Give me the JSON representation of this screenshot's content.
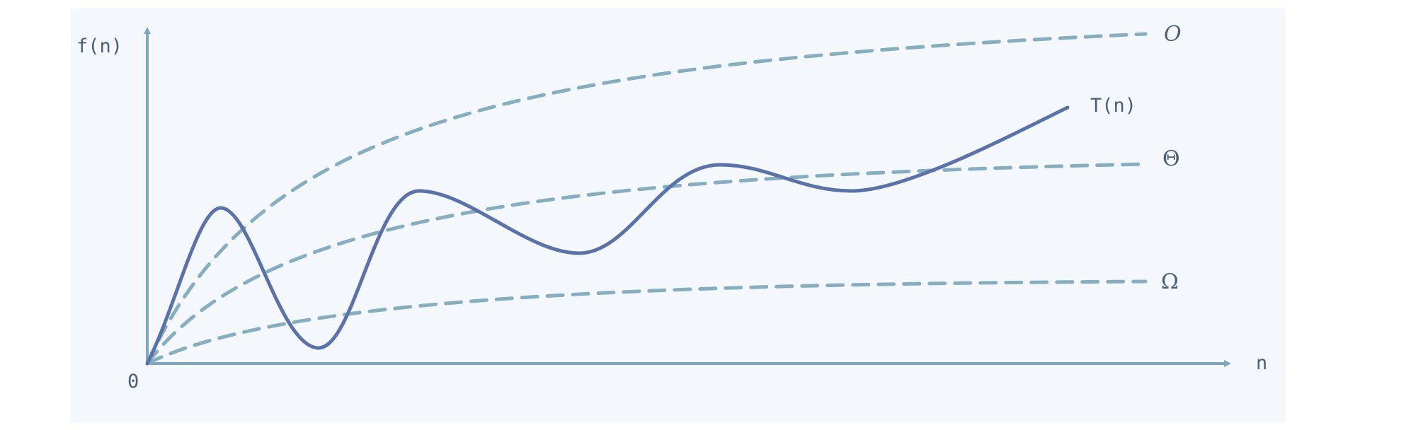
{
  "diagram": {
    "y_axis_label": "f(n)",
    "x_axis_label": "n",
    "origin_label": "0",
    "curves": {
      "upper_bound": {
        "label": "O"
      },
      "actual": {
        "label": "T(n)"
      },
      "tight_bound": {
        "label": "Θ"
      },
      "lower_bound": {
        "label": "Ω"
      }
    }
  },
  "colors": {
    "panel_background": "#f4f8fc",
    "axes": "#7ea7bd",
    "dashed_curves": "#86aebe",
    "actual_curve": "#5b72a8",
    "text": "#4b5f79"
  }
}
